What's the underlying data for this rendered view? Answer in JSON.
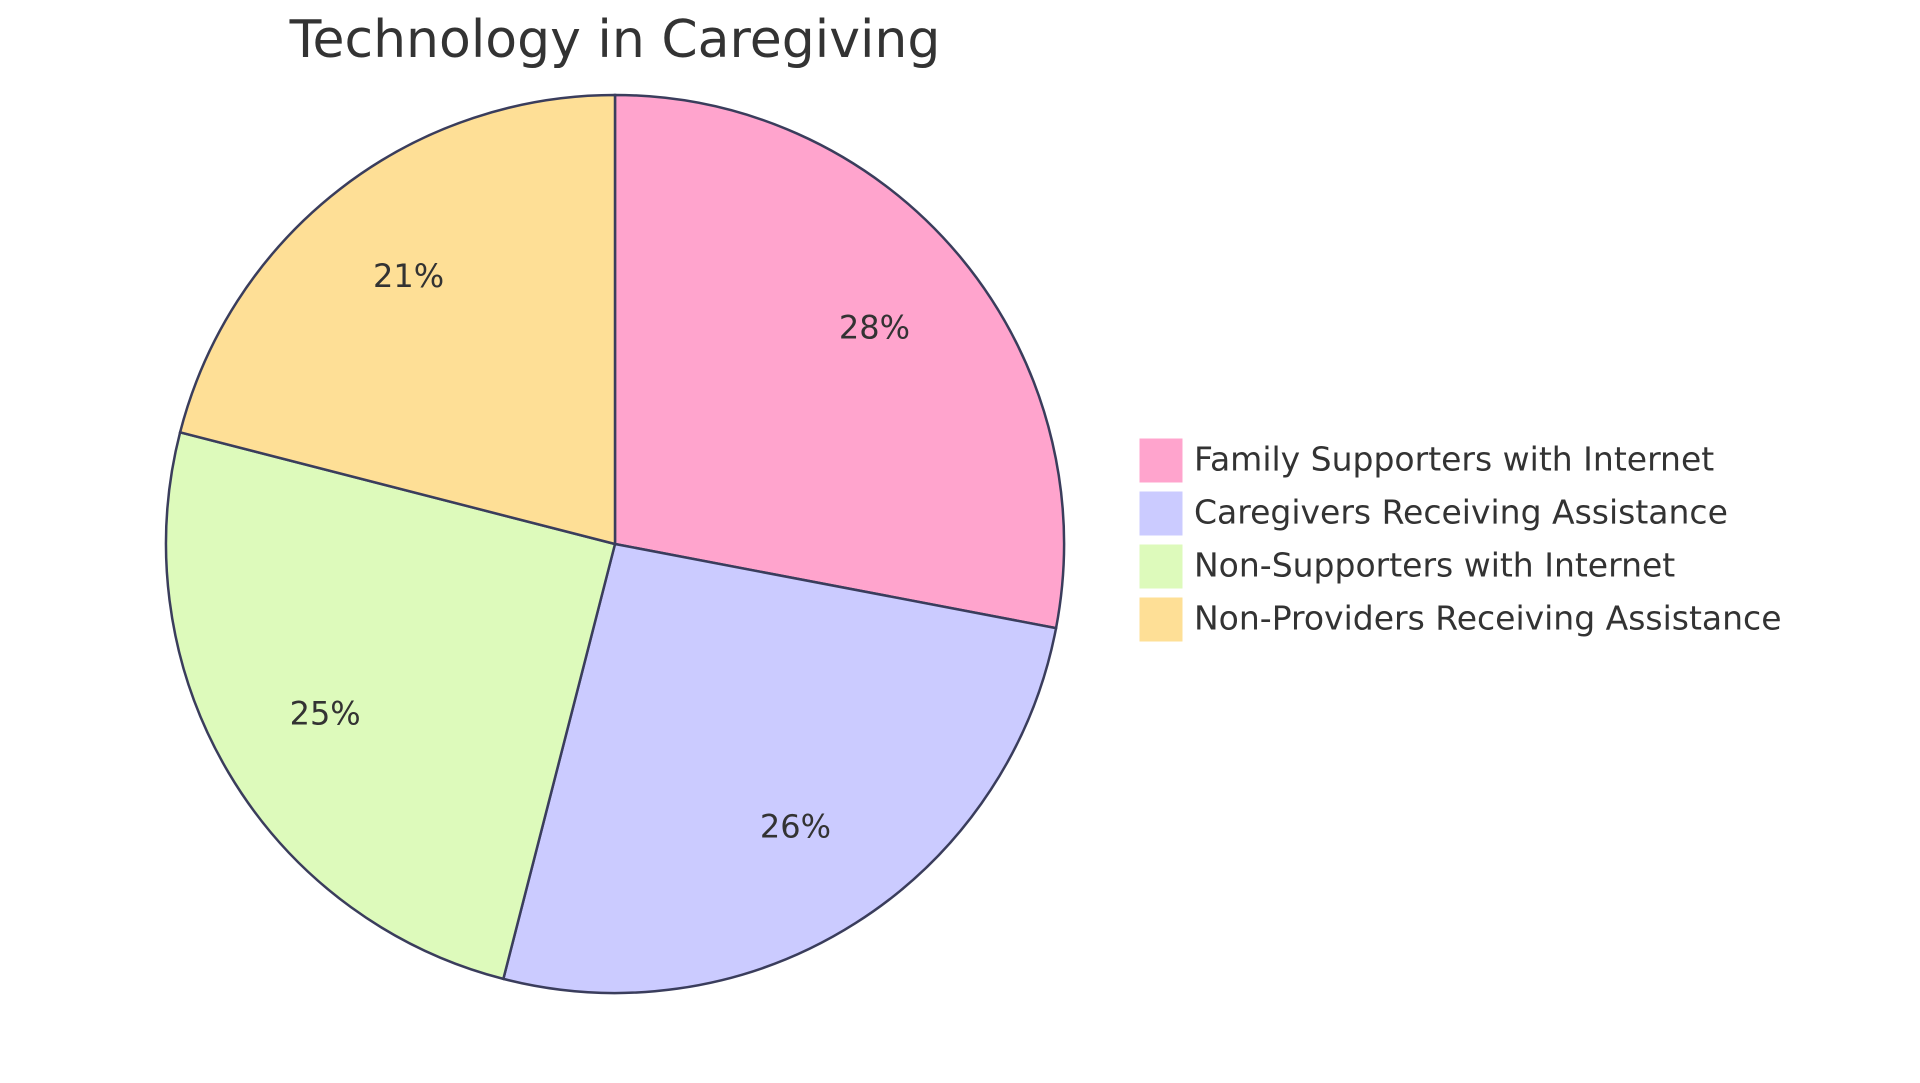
{
  "chart_data": {
    "type": "pie",
    "title": "Technology in Caregiving",
    "categories": [
      "Family Supporters with Internet",
      "Caregivers Receiving Assistance",
      "Non-Supporters with Internet",
      "Non-Providers Receiving Assistance"
    ],
    "values": [
      28,
      26,
      25,
      21
    ],
    "value_labels": [
      "28%",
      "26%",
      "25%",
      "21%"
    ],
    "colors": [
      "#ffa4cd",
      "#cbcbff",
      "#ddfabb",
      "#fedf96"
    ],
    "legend": "right"
  }
}
